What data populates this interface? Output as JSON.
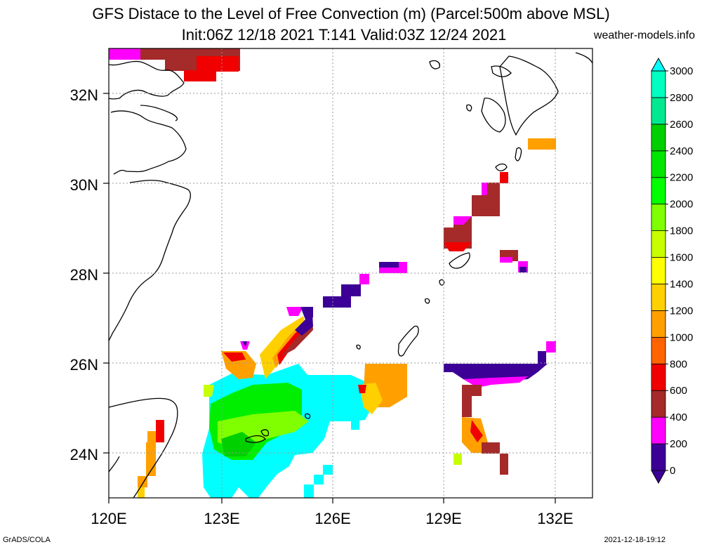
{
  "title_line1": "GFS Distace to the Level of Free Convection (m) (Parcel:500m above MSL)",
  "title_line2": "Init:06Z 12/18 2021 T:141 Valid:03Z 12/24 2021",
  "site": "weather-models.info",
  "footer_left": "GrADS/COLA",
  "footer_right": "2021-12-18-19:12",
  "lat_labels": [
    "24N",
    "26N",
    "28N",
    "30N",
    "32N"
  ],
  "lon_labels": [
    "120E",
    "123E",
    "126E",
    "129E",
    "132E"
  ],
  "colorbar": {
    "labels": [
      "0",
      "200",
      "400",
      "600",
      "800",
      "1000",
      "1200",
      "1400",
      "1600",
      "1800",
      "2000",
      "2200",
      "2400",
      "2600",
      "2800",
      "3000"
    ],
    "colors": [
      "#3c0096",
      "#ff00ff",
      "#a52a2a",
      "#f00000",
      "#ff6400",
      "#ffa000",
      "#ffd000",
      "#ffff00",
      "#c8ff00",
      "#7fff00",
      "#00ff00",
      "#00e600",
      "#00d000",
      "#00e890",
      "#00ffc0",
      "#00ffff"
    ]
  }
}
